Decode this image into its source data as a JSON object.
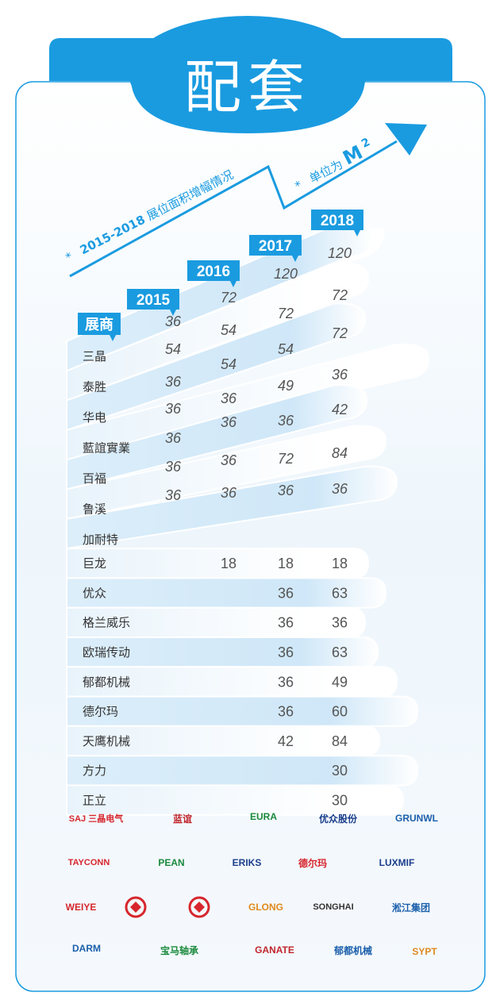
{
  "title": "配套",
  "subtitle": {
    "star": "*",
    "years": "2015-2018",
    "text": "展位面积增幅情况"
  },
  "unit": {
    "star": "*",
    "text": "单位为",
    "symbol": "M",
    "exponent": "2"
  },
  "header_label": "展商",
  "years": [
    "2015",
    "2016",
    "2017",
    "2018"
  ],
  "rows": [
    {
      "name": "三晶",
      "values": [
        "36",
        "72",
        "120",
        "120"
      ]
    },
    {
      "name": "泰胜",
      "values": [
        "54",
        "54",
        "72",
        "72"
      ]
    },
    {
      "name": "华电",
      "values": [
        "36",
        "54",
        "54",
        "72"
      ]
    },
    {
      "name": "藍誼實業",
      "values": [
        "36",
        "36",
        "49",
        "36"
      ]
    },
    {
      "name": "百福",
      "values": [
        "36",
        "36",
        "36",
        "42"
      ]
    },
    {
      "name": "鲁溪",
      "values": [
        "36",
        "36",
        "72",
        "84"
      ]
    },
    {
      "name": "加耐特",
      "values": [
        "36",
        "36",
        "36",
        "36"
      ]
    },
    {
      "name": "巨龙",
      "values": [
        "",
        "18",
        "18",
        "18"
      ]
    },
    {
      "name": "优众",
      "values": [
        "",
        "",
        "36",
        "63"
      ]
    },
    {
      "name": "格兰威乐",
      "values": [
        "",
        "",
        "36",
        "36"
      ]
    },
    {
      "name": "欧瑞传动",
      "values": [
        "",
        "",
        "36",
        "63"
      ]
    },
    {
      "name": "郁都机械",
      "values": [
        "",
        "",
        "36",
        "49"
      ]
    },
    {
      "name": "德尔玛",
      "values": [
        "",
        "",
        "36",
        "60"
      ]
    },
    {
      "name": "天鹰机械",
      "values": [
        "",
        "",
        "42",
        "84"
      ]
    },
    {
      "name": "方力",
      "values": [
        "",
        "",
        "",
        "30"
      ]
    },
    {
      "name": "正立",
      "values": [
        "",
        "",
        "",
        "30"
      ]
    }
  ],
  "logos": [
    {
      "text": "SAJ 三晶电气",
      "icon": "saj-logo",
      "color": "#d7262d"
    },
    {
      "text": "蓝谊",
      "icon": "lanyi-logo",
      "color": "#c0272d"
    },
    {
      "text": "EURA",
      "icon": "eura-logo",
      "color": "#1a8a3c"
    },
    {
      "text": "优众股份",
      "icon": "youzhong-logo",
      "color": "#1b3f8b"
    },
    {
      "text": "GRUNWL",
      "icon": "grunwl-logo",
      "color": "#1b5fab"
    },
    {
      "text": "TAYCONN",
      "icon": "tayconn-logo",
      "color": "#d7262d"
    },
    {
      "text": "PEAN",
      "icon": "pean-logo",
      "color": "#1a8a3c"
    },
    {
      "text": "ERIKS",
      "icon": "eriks-logo",
      "color": "#1b3f8b"
    },
    {
      "text": "德尔玛",
      "icon": "delma-logo",
      "color": "#d7262d"
    },
    {
      "text": "LUXMIF",
      "icon": "luxmif-logo",
      "color": "#1b3f8b"
    },
    {
      "text": "WEIYE",
      "icon": "weiye-logo",
      "color": "#d7262d"
    },
    {
      "text": "",
      "icon": "gear-seal-logo",
      "color": "#d7262d"
    },
    {
      "text": "",
      "icon": "red-mark-logo",
      "color": "#d7262d"
    },
    {
      "text": "GLONG",
      "icon": "glong-logo",
      "color": "#e08a1e"
    },
    {
      "text": "SONGHAI",
      "icon": "songhai-logo",
      "color": "#333333"
    },
    {
      "text": "淞江集团",
      "icon": "songjiang-logo",
      "color": "#1b5fab"
    },
    {
      "text": "DARM",
      "icon": "darm-logo",
      "color": "#1b5fab"
    },
    {
      "text": "宝马轴承",
      "icon": "baoma-logo",
      "color": "#1a8a3c"
    },
    {
      "text": "GANATE",
      "icon": "ganate-logo",
      "color": "#c0272d"
    },
    {
      "text": "郁都机械",
      "icon": "yudu-logo",
      "color": "#1b5fab"
    },
    {
      "text": "SYPT",
      "icon": "sypt-logo",
      "color": "#e08a1e"
    }
  ],
  "colors": {
    "brand_blue": "#1a9be0",
    "dark_text": "#333333",
    "number_text": "#555555"
  }
}
